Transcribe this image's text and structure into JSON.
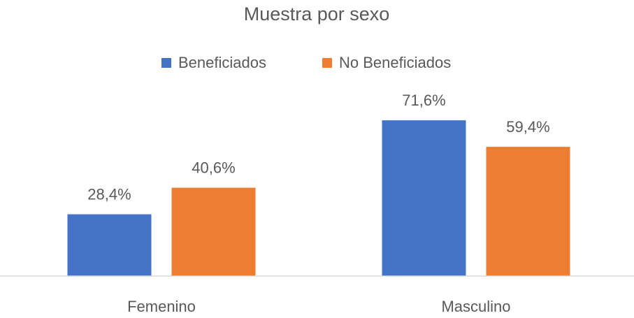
{
  "chart_data": {
    "type": "bar",
    "title": "Muestra por sexo",
    "categories": [
      "Femenino",
      "Masculino"
    ],
    "series": [
      {
        "name": "Beneficiados",
        "color": "#4472c4",
        "values": [
          28.4,
          71.6
        ],
        "value_labels": [
          "28,4%",
          "71,6%"
        ]
      },
      {
        "name": "No Beneficiados",
        "color": "#ed7d31",
        "values": [
          40.6,
          59.4
        ],
        "value_labels": [
          "40,6%",
          "59,4%"
        ]
      }
    ],
    "ylim": [
      0,
      80
    ],
    "legend": "top"
  }
}
